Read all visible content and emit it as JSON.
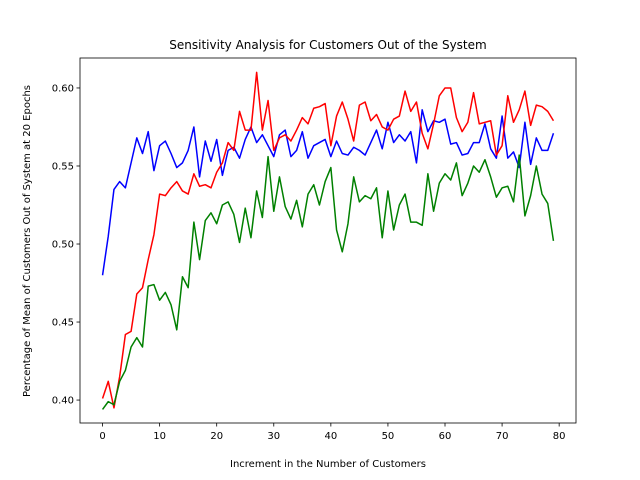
{
  "chart_data": {
    "type": "line",
    "title": "Sensitivity Analysis for Customers Out of the System",
    "x_label": "Increment in the Number of Customers",
    "y_label": "Percentage of Mean of Customers Out of System at 20 Epochs",
    "x": [
      0,
      1,
      2,
      3,
      4,
      5,
      6,
      7,
      8,
      9,
      10,
      11,
      12,
      13,
      14,
      15,
      16,
      17,
      18,
      19,
      20,
      21,
      22,
      23,
      24,
      25,
      26,
      27,
      28,
      29,
      30,
      31,
      32,
      33,
      34,
      35,
      36,
      37,
      38,
      39,
      40,
      41,
      42,
      43,
      44,
      45,
      46,
      47,
      48,
      49,
      50,
      51,
      52,
      53,
      54,
      55,
      56,
      57,
      58,
      59,
      60,
      61,
      62,
      63,
      64,
      65,
      66,
      67,
      68,
      69,
      70,
      71,
      72,
      73,
      74,
      75,
      76,
      77,
      78,
      79
    ],
    "series": [
      {
        "color": "#0000ff",
        "values": [
          0.48,
          0.505,
          0.535,
          0.54,
          0.536,
          0.552,
          0.568,
          0.558,
          0.572,
          0.547,
          0.563,
          0.566,
          0.558,
          0.549,
          0.552,
          0.56,
          0.575,
          0.543,
          0.566,
          0.553,
          0.567,
          0.544,
          0.56,
          0.562,
          0.555,
          0.567,
          0.575,
          0.565,
          0.57,
          0.563,
          0.556,
          0.57,
          0.573,
          0.556,
          0.56,
          0.572,
          0.555,
          0.563,
          0.565,
          0.567,
          0.556,
          0.566,
          0.558,
          0.557,
          0.562,
          0.56,
          0.557,
          0.565,
          0.573,
          0.561,
          0.578,
          0.565,
          0.57,
          0.566,
          0.572,
          0.552,
          0.586,
          0.572,
          0.579,
          0.578,
          0.58,
          0.564,
          0.565,
          0.557,
          0.558,
          0.565,
          0.565,
          0.577,
          0.561,
          0.555,
          0.582,
          0.555,
          0.559,
          0.549,
          0.578,
          0.551,
          0.568,
          0.56,
          0.56,
          0.571
        ]
      },
      {
        "color": "#ff0000",
        "values": [
          0.401,
          0.412,
          0.395,
          0.415,
          0.442,
          0.444,
          0.468,
          0.472,
          0.49,
          0.506,
          0.532,
          0.531,
          0.536,
          0.54,
          0.534,
          0.532,
          0.545,
          0.537,
          0.538,
          0.536,
          0.546,
          0.552,
          0.565,
          0.56,
          0.585,
          0.573,
          0.573,
          0.61,
          0.573,
          0.592,
          0.56,
          0.568,
          0.57,
          0.566,
          0.573,
          0.581,
          0.577,
          0.587,
          0.588,
          0.59,
          0.563,
          0.582,
          0.591,
          0.58,
          0.566,
          0.589,
          0.591,
          0.579,
          0.583,
          0.575,
          0.573,
          0.58,
          0.582,
          0.598,
          0.585,
          0.591,
          0.571,
          0.561,
          0.577,
          0.595,
          0.6,
          0.6,
          0.581,
          0.572,
          0.578,
          0.597,
          0.577,
          0.578,
          0.579,
          0.557,
          0.563,
          0.595,
          0.578,
          0.586,
          0.598,
          0.576,
          0.589,
          0.588,
          0.585,
          0.579
        ]
      },
      {
        "color": "#008000",
        "values": [
          0.394,
          0.399,
          0.397,
          0.412,
          0.419,
          0.434,
          0.44,
          0.434,
          0.473,
          0.474,
          0.464,
          0.469,
          0.461,
          0.445,
          0.479,
          0.472,
          0.514,
          0.49,
          0.515,
          0.52,
          0.513,
          0.525,
          0.527,
          0.519,
          0.501,
          0.523,
          0.504,
          0.534,
          0.517,
          0.556,
          0.521,
          0.543,
          0.524,
          0.516,
          0.528,
          0.511,
          0.532,
          0.538,
          0.525,
          0.54,
          0.549,
          0.509,
          0.495,
          0.513,
          0.543,
          0.527,
          0.531,
          0.529,
          0.536,
          0.504,
          0.534,
          0.509,
          0.525,
          0.532,
          0.514,
          0.514,
          0.512,
          0.545,
          0.521,
          0.539,
          0.545,
          0.541,
          0.552,
          0.531,
          0.539,
          0.55,
          0.546,
          0.554,
          0.543,
          0.53,
          0.536,
          0.537,
          0.527,
          0.557,
          0.518,
          0.531,
          0.55,
          0.532,
          0.526,
          0.502
        ]
      }
    ],
    "xlim": [
      -3.95,
      82.95
    ],
    "xticks": [
      0,
      10,
      20,
      30,
      40,
      50,
      60,
      70,
      80
    ],
    "ylim": [
      0.3853,
      0.6192
    ],
    "yticks": [
      {
        "value": 0.4,
        "label": "0.40"
      },
      {
        "value": 0.45,
        "label": "0.45"
      },
      {
        "value": 0.5,
        "label": "0.50"
      },
      {
        "value": 0.55,
        "label": "0.55"
      },
      {
        "value": 0.6,
        "label": "0.60"
      }
    ],
    "grid": false
  }
}
